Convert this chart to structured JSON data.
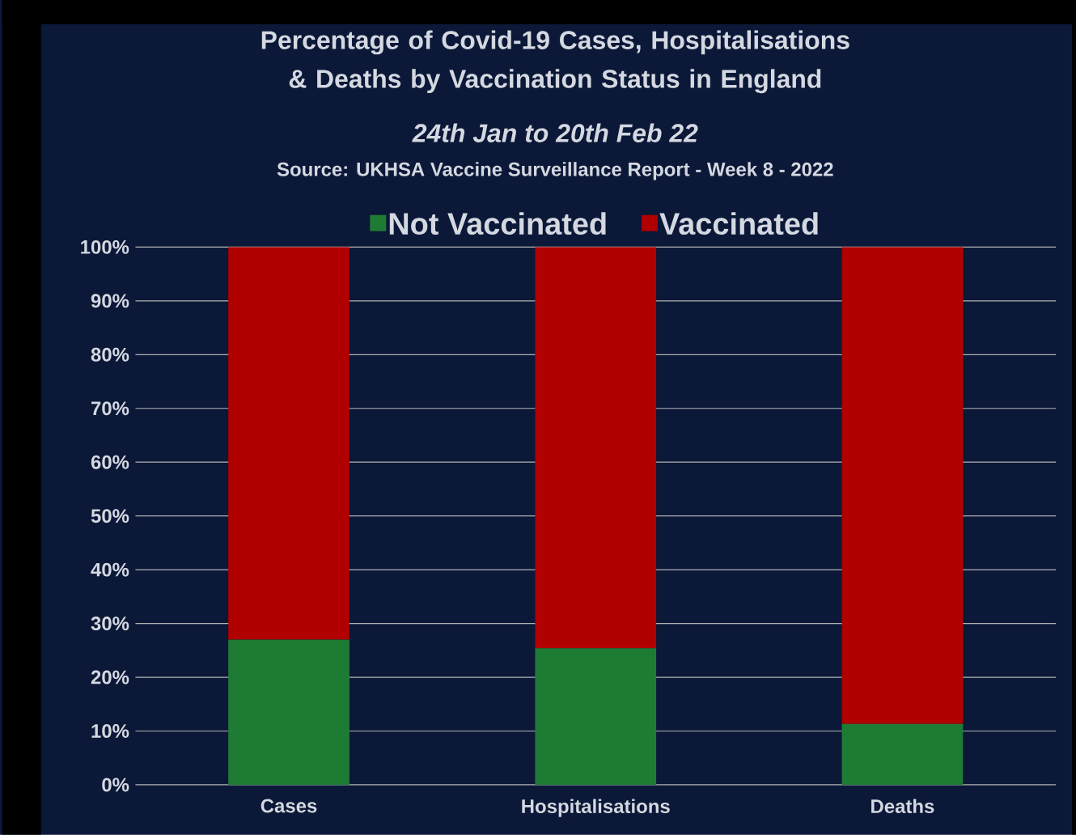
{
  "chart_data": {
    "type": "bar",
    "title": "Percentage of Covid-19 Cases, Hospitalisations & Deaths by Vaccination Status in England",
    "subtitle": "24th Jan to 20th Feb 22",
    "annotations": [
      "Source: UKHSA Vaccine Surveillance Report - Week 8 - 2022"
    ],
    "categories": [
      "Cases",
      "Hospitalisations",
      "Deaths"
    ],
    "series": [
      {
        "name": "Not Vaccinated",
        "color": "#1e7b34",
        "values": [
          27.0,
          25.4,
          11.3
        ]
      },
      {
        "name": "Vaccinated",
        "color": "#b00000",
        "values": [
          73.0,
          74.6,
          88.7
        ]
      }
    ],
    "stacked": true,
    "ylim": [
      0,
      100
    ],
    "yticks": [
      {
        "value": 0,
        "label": "0%"
      },
      {
        "value": 10,
        "label": "10%"
      },
      {
        "value": 20,
        "label": "20%"
      },
      {
        "value": 30,
        "label": "30%"
      },
      {
        "value": 40,
        "label": "40%"
      },
      {
        "value": 50,
        "label": "50%"
      },
      {
        "value": 60,
        "label": "60%"
      },
      {
        "value": 70,
        "label": "70%"
      },
      {
        "value": 80,
        "label": "80%"
      },
      {
        "value": 90,
        "label": "90%"
      },
      {
        "value": 100,
        "label": "100%"
      }
    ],
    "grid": "y",
    "legend": "top"
  }
}
